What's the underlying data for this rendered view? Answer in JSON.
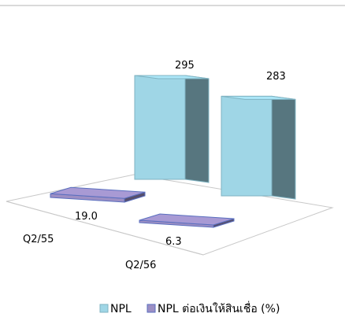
{
  "chart_data": {
    "type": "bar",
    "categories": [
      "Q2/55",
      "Q2/56"
    ],
    "series": [
      {
        "name": "NPL",
        "values": [
          295,
          283
        ],
        "color": "#9fd6e6"
      },
      {
        "name": "NPL ต่อเงินให้สินเชื่อ (%)",
        "values": [
          19.0,
          6.3
        ],
        "color": "#9c8fc4"
      }
    ],
    "data_labels": [
      [
        "295",
        "283"
      ],
      [
        "19.0",
        "6.3"
      ]
    ],
    "legend_position": "bottom-right",
    "style": "3d-clustered"
  }
}
